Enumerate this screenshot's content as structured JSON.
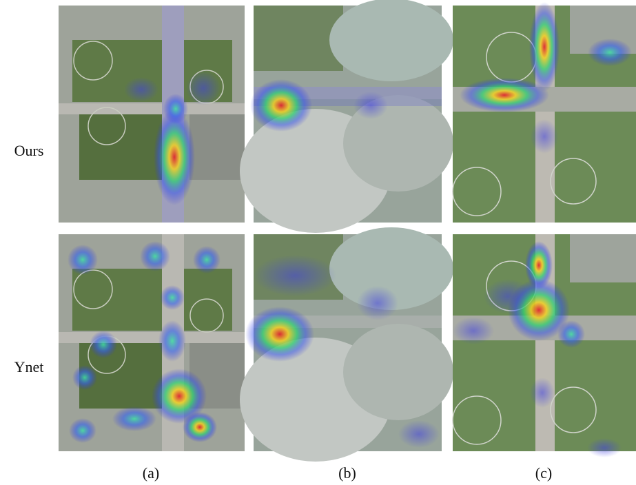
{
  "row_labels": [
    "Ours",
    "Ynet"
  ],
  "column_labels": [
    "(a)",
    "(b)",
    "(c)"
  ]
}
